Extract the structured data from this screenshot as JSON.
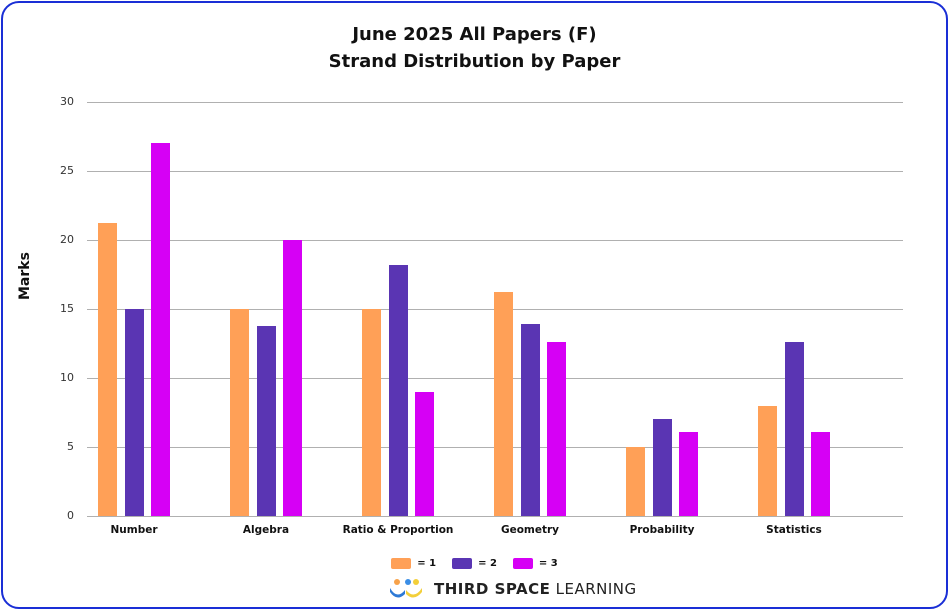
{
  "chart_data": {
    "type": "bar",
    "title": "June 2025 All Papers (F)",
    "subtitle": "Strand Distribution by Paper",
    "xlabel": "",
    "ylabel": "Marks",
    "ylim": [
      0,
      30
    ],
    "yticks": [
      0,
      5,
      10,
      15,
      20,
      25,
      30
    ],
    "grid": true,
    "legend_position": "bottom",
    "categories": [
      "Number",
      "Algebra",
      "Ratio & Proportion",
      "Geometry",
      "Probability",
      "Statistics"
    ],
    "series": [
      {
        "name": "= 1",
        "color": "#ffa057",
        "values": [
          21.2,
          15,
          15,
          16.2,
          5,
          8
        ]
      },
      {
        "name": "= 2",
        "color": "#5a35b3",
        "values": [
          15,
          13.8,
          18.2,
          13.9,
          7,
          12.6
        ]
      },
      {
        "name": "= 3",
        "color": "#d600f5",
        "values": [
          27,
          20,
          9,
          12.6,
          6.1,
          6.1
        ]
      }
    ]
  },
  "branding": {
    "bold": "THIRD SPACE",
    "light": " LEARNING"
  },
  "colors": {
    "border": "#1a2fd6",
    "gridline": "#b0b0b0"
  }
}
